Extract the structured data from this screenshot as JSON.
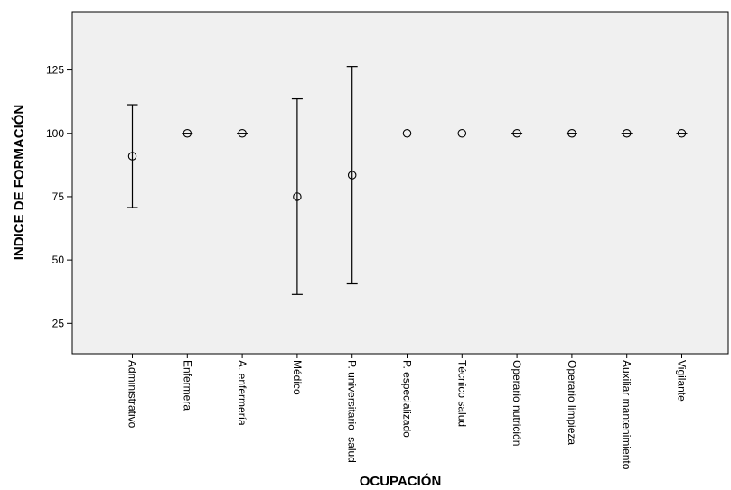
{
  "chart_data": {
    "type": "errorbar",
    "xlabel": "OCUPACIÓN",
    "ylabel": "INDICE DE FORMACIÓN",
    "ylim": [
      13,
      148
    ],
    "yticks": [
      25,
      50,
      75,
      100,
      125
    ],
    "grid": false,
    "colors": {
      "background": "#f0f0f0",
      "marks": "#000000"
    },
    "categories": [
      "Administrativo",
      "Enfermera",
      "A. enfermería",
      "Médico",
      "P. universitario- salud",
      "P. especializado",
      "Técnico salud",
      "Operario nutrición",
      "Operario limpieza",
      "Auxiliar mantenimiento",
      "Vigilante"
    ],
    "means": [
      91,
      100,
      100,
      75,
      83.5,
      100,
      100,
      100,
      100,
      100,
      100
    ],
    "lower": [
      70.7,
      100,
      100,
      36.4,
      40.6,
      null,
      null,
      100,
      100,
      100,
      100
    ],
    "upper": [
      111.3,
      100,
      100,
      113.6,
      126.4,
      null,
      null,
      100,
      100,
      100,
      100
    ]
  }
}
